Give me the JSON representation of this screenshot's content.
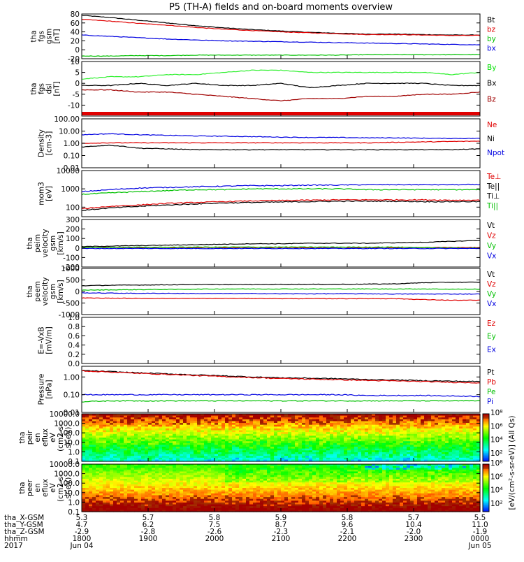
{
  "title": "P5 (TH-A) fields and on-board moments overview",
  "colors": {
    "black": "#000000",
    "red": "#e00000",
    "green": "#00e000",
    "blue": "#0000e0",
    "brightgreen": "#30f030",
    "darkred": "#a00000"
  },
  "chart_data": [
    {
      "type": "line",
      "ylabel": [
        "tha",
        "fgs",
        "gsm",
        "[nT]"
      ],
      "ylim": [
        -20,
        80
      ],
      "yticks": [
        "-20",
        "0",
        "20",
        "40",
        "60",
        "80"
      ],
      "legend": [
        {
          "name": "Bt",
          "color": "#000000"
        },
        {
          "name": "bz",
          "color": "#e00000"
        },
        {
          "name": "by",
          "color": "#00c000"
        },
        {
          "name": "bx",
          "color": "#0000e0"
        }
      ],
      "series": [
        {
          "name": "Bt",
          "color": "#000000",
          "values": [
            77,
            72,
            66,
            60,
            54,
            49,
            45,
            42,
            39,
            37,
            35,
            35,
            34,
            33,
            33
          ]
        },
        {
          "name": "bz",
          "color": "#e00000",
          "values": [
            68,
            64,
            59,
            55,
            50,
            46,
            43,
            40,
            38,
            36,
            34,
            34,
            33,
            32,
            32
          ]
        },
        {
          "name": "by",
          "color": "#00c000",
          "values": [
            -14,
            -14,
            -13,
            -13,
            -12,
            -12,
            -12,
            -12,
            -12,
            -12,
            -11,
            -11,
            -11,
            -11,
            -11
          ]
        },
        {
          "name": "bx",
          "color": "#0000e0",
          "values": [
            33,
            30,
            27,
            24,
            22,
            20,
            19,
            18,
            17,
            16,
            15,
            14,
            13,
            12,
            11
          ]
        }
      ]
    },
    {
      "type": "line",
      "ylabel": [
        "tha",
        "fgs",
        "dsl",
        "[nT]"
      ],
      "ylim": [
        -15,
        10
      ],
      "yticks": [
        "-10",
        "-5",
        "0",
        "5",
        "10"
      ],
      "legend": [
        {
          "name": "By",
          "color": "#00e000"
        },
        {
          "name": "Bx",
          "color": "#000000"
        },
        {
          "name": "Bz",
          "color": "#a00000"
        }
      ],
      "series": [
        {
          "name": "By",
          "color": "#30f030",
          "values": [
            2,
            3,
            3,
            4,
            4,
            5,
            6,
            6,
            5,
            5,
            5,
            5,
            5,
            4,
            5
          ]
        },
        {
          "name": "Bx",
          "color": "#000000",
          "values": [
            -1,
            -1,
            0,
            -1,
            0,
            -1,
            -1,
            0,
            -2,
            -1,
            0,
            0,
            0,
            -1,
            -1
          ]
        },
        {
          "name": "Bz",
          "color": "#a00000",
          "values": [
            -3,
            -3,
            -4,
            -4,
            -5,
            -6,
            -7,
            -8,
            -7,
            -7,
            -6,
            -6,
            -5,
            -5,
            -4
          ]
        }
      ]
    },
    {
      "type": "line",
      "ylabel": [
        "Density",
        "[cm-3]"
      ],
      "yscale": "log",
      "ylim": [
        0.01,
        100
      ],
      "yticks": [
        "0.01",
        "0.10",
        "1.00",
        "10.00",
        "100.00"
      ],
      "legend": [
        {
          "name": "Ne",
          "color": "#e00000"
        },
        {
          "name": "Ni",
          "color": "#000000"
        },
        {
          "name": "Npot",
          "color": "#0000e0"
        }
      ],
      "series": [
        {
          "name": "Npot",
          "color": "#0000e0",
          "values": [
            5,
            6,
            5,
            4.5,
            4,
            3.8,
            3.5,
            3.2,
            3,
            3,
            2.8,
            2.8,
            2.6,
            2.5,
            2.5
          ]
        },
        {
          "name": "Ne",
          "color": "#e00000",
          "values": [
            1,
            1.1,
            1.1,
            1.1,
            1.1,
            1.1,
            1.1,
            1.1,
            1.1,
            1.1,
            1.1,
            1.2,
            1.3,
            1.4,
            1.5
          ]
        },
        {
          "name": "Ni",
          "color": "#000000",
          "values": [
            0.5,
            0.7,
            0.4,
            0.35,
            0.3,
            0.3,
            0.3,
            0.3,
            0.3,
            0.3,
            0.3,
            0.3,
            0.3,
            0.3,
            0.35
          ]
        }
      ]
    },
    {
      "type": "line",
      "ylabel": [
        "mom3",
        "[eV]"
      ],
      "yscale": "log",
      "ylim": [
        30,
        10000
      ],
      "yticks": [
        "100",
        "1000",
        "10000"
      ],
      "legend": [
        {
          "name": "Te⊥",
          "color": "#e00000"
        },
        {
          "name": "Te||",
          "color": "#000000"
        },
        {
          "name": "Ti⊥",
          "color": "#000000"
        },
        {
          "name": "Ti||",
          "color": "#00c000"
        }
      ],
      "series": [
        {
          "name": "Ti⊥",
          "color": "#0000e0",
          "values": [
            700,
            900,
            1100,
            1200,
            1300,
            1400,
            1500,
            1500,
            1600,
            1600,
            1700,
            1700,
            1700,
            1700,
            1700
          ]
        },
        {
          "name": "Ti||",
          "color": "#00c000",
          "values": [
            500,
            600,
            700,
            800,
            900,
            900,
            1000,
            1000,
            1000,
            1000,
            900,
            900,
            900,
            900,
            900
          ]
        },
        {
          "name": "Te⊥",
          "color": "#e00000",
          "values": [
            80,
            110,
            130,
            160,
            180,
            200,
            220,
            230,
            240,
            250,
            250,
            250,
            250,
            240,
            240
          ]
        },
        {
          "name": "Te||",
          "color": "#000000",
          "values": [
            65,
            90,
            110,
            130,
            150,
            170,
            180,
            190,
            200,
            210,
            210,
            210,
            200,
            200,
            200
          ]
        }
      ]
    },
    {
      "type": "line",
      "ylabel": [
        "tha",
        "peim",
        "velocity",
        "gsm",
        "[km/s]"
      ],
      "ylim": [
        -200,
        300
      ],
      "yticks": [
        "-200",
        "-100",
        "0",
        "100",
        "200",
        "300"
      ],
      "legend": [
        {
          "name": "Vt",
          "color": "#000000"
        },
        {
          "name": "Vz",
          "color": "#e00000"
        },
        {
          "name": "Vy",
          "color": "#00c000"
        },
        {
          "name": "Vx",
          "color": "#0000e0"
        }
      ],
      "series": [
        {
          "name": "Vt",
          "color": "#000000",
          "values": [
            15,
            20,
            25,
            30,
            35,
            40,
            45,
            45,
            50,
            50,
            50,
            55,
            60,
            70,
            80
          ]
        },
        {
          "name": "Vz",
          "color": "#e00000",
          "values": [
            5,
            5,
            5,
            5,
            5,
            5,
            5,
            5,
            5,
            5,
            5,
            5,
            5,
            5,
            5
          ]
        },
        {
          "name": "Vy",
          "color": "#00c000",
          "values": [
            5,
            5,
            8,
            8,
            10,
            10,
            10,
            10,
            10,
            10,
            10,
            10,
            5,
            0,
            0
          ]
        },
        {
          "name": "Vx",
          "color": "#0000e0",
          "values": [
            -5,
            -5,
            -5,
            -5,
            -5,
            -5,
            -5,
            -5,
            -5,
            -5,
            -5,
            -5,
            -5,
            -5,
            -5
          ]
        }
      ]
    },
    {
      "type": "line",
      "ylabel": [
        "tha",
        "peem",
        "velocity",
        "gsm",
        "[km/s]"
      ],
      "ylim": [
        -1000,
        1000
      ],
      "yticks": [
        "-1000",
        "-500",
        "0",
        "500",
        "1000"
      ],
      "legend": [
        {
          "name": "Vt",
          "color": "#000000"
        },
        {
          "name": "Vz",
          "color": "#e00000"
        },
        {
          "name": "Vy",
          "color": "#00c000"
        },
        {
          "name": "Vx",
          "color": "#0000e0"
        }
      ],
      "series": [
        {
          "name": "Vt",
          "color": "#000000",
          "values": [
            250,
            270,
            280,
            290,
            300,
            300,
            300,
            310,
            310,
            310,
            320,
            330,
            380,
            400,
            400
          ]
        },
        {
          "name": "Vy",
          "color": "#00c000",
          "values": [
            60,
            70,
            80,
            90,
            100,
            110,
            110,
            110,
            110,
            110,
            110,
            110,
            110,
            100,
            100
          ]
        },
        {
          "name": "Vx",
          "color": "#0000e0",
          "values": [
            -60,
            -70,
            -80,
            -80,
            -90,
            -90,
            -90,
            -100,
            -100,
            -100,
            -100,
            -110,
            -110,
            -110,
            -110
          ]
        },
        {
          "name": "Vz",
          "color": "#e00000",
          "values": [
            -280,
            -290,
            -300,
            -300,
            -300,
            -300,
            -300,
            -310,
            -310,
            -310,
            -310,
            -310,
            -350,
            -380,
            -380
          ]
        }
      ]
    },
    {
      "type": "line",
      "ylabel": [
        "E=-VxB",
        "[mV/m]"
      ],
      "ylim": [
        0,
        1
      ],
      "yticks": [
        "0.0",
        "0.2",
        "0.4",
        "0.6",
        "0.8",
        "1.0"
      ],
      "legend": [
        {
          "name": "Ez",
          "color": "#e00000"
        },
        {
          "name": "Ey",
          "color": "#00c000"
        },
        {
          "name": "Ex",
          "color": "#0000e0"
        }
      ],
      "series": []
    },
    {
      "type": "line",
      "ylabel": [
        "Pressure",
        "[nPa]"
      ],
      "yscale": "log",
      "ylim": [
        0.01,
        4
      ],
      "yticks": [
        "0.01",
        "0.10",
        "1.00"
      ],
      "legend": [
        {
          "name": "Pt",
          "color": "#000000"
        },
        {
          "name": "Pb",
          "color": "#e00000"
        },
        {
          "name": "Pe",
          "color": "#00c000"
        },
        {
          "name": "Pi",
          "color": "#0000e0"
        }
      ],
      "series": [
        {
          "name": "Pt",
          "color": "#000000",
          "values": [
            2.3,
            2.0,
            1.7,
            1.5,
            1.3,
            1.15,
            1.0,
            0.9,
            0.85,
            0.8,
            0.72,
            0.68,
            0.62,
            0.58,
            0.55
          ]
        },
        {
          "name": "Pb",
          "color": "#e00000",
          "values": [
            2.2,
            1.9,
            1.6,
            1.4,
            1.2,
            1.05,
            0.92,
            0.82,
            0.76,
            0.7,
            0.64,
            0.6,
            0.55,
            0.5,
            0.47
          ]
        },
        {
          "name": "Pi",
          "color": "#0000e0",
          "values": [
            0.1,
            0.1,
            0.1,
            0.1,
            0.1,
            0.1,
            0.1,
            0.1,
            0.1,
            0.1,
            0.09,
            0.09,
            0.09,
            0.085,
            0.08
          ]
        },
        {
          "name": "Pe",
          "color": "#00c000",
          "values": [
            0.04,
            0.045,
            0.045,
            0.045,
            0.045,
            0.045,
            0.045,
            0.045,
            0.045,
            0.045,
            0.045,
            0.045,
            0.045,
            0.045,
            0.045
          ]
        }
      ]
    },
    {
      "type": "heatmap",
      "ylabel": [
        "tha",
        "peir",
        "en",
        "eflux",
        "eV",
        "(cm2-s-",
        "sr-eV)"
      ],
      "yscale": "log",
      "ylim": [
        0.1,
        10000
      ],
      "yticks": [
        "0.1",
        "1.0",
        "10.0",
        "100.0",
        "1000.0",
        "10000.0"
      ]
    },
    {
      "type": "heatmap",
      "ylabel": [
        "tha",
        "peer",
        "en",
        "eflux",
        "eV",
        "(cm2-s-",
        "sr-eV)"
      ],
      "yscale": "log",
      "ylim": [
        0.1,
        10000
      ],
      "yticks": [
        "0.1",
        "1.0",
        "10.0",
        "100.0",
        "1000.0",
        "10000.0"
      ]
    }
  ],
  "colorbar": {
    "label": "[eV/(cm²-s-sr-eV)] (All Qs)",
    "ticks": [
      "10²",
      "10⁴",
      "10⁶",
      "10⁸"
    ]
  },
  "time_axis": {
    "hhmm_ticks": [
      "1800",
      "1900",
      "2000",
      "2100",
      "2200",
      "2300",
      "0000"
    ],
    "rows": [
      {
        "label": "tha_X-GSM",
        "values": [
          "5.3",
          "5.7",
          "5.8",
          "5.9",
          "5.8",
          "5.7",
          "5.5"
        ]
      },
      {
        "label": "tha_Y-GSM",
        "values": [
          "4.7",
          "6.2",
          "7.5",
          "8.7",
          "9.6",
          "10.4",
          "11.0"
        ]
      },
      {
        "label": "tha_Z-GSM",
        "values": [
          "-2.9",
          "-2.8",
          "-2.6",
          "-2.3",
          "-2.1",
          "-2.0",
          "-1.9"
        ]
      },
      {
        "label": "hhmm",
        "values": [
          "1800",
          "1900",
          "2000",
          "2100",
          "2200",
          "2300",
          "0000"
        ]
      }
    ],
    "year": "2017",
    "start_date": "Jun 04",
    "end_date": "Jun 05"
  }
}
